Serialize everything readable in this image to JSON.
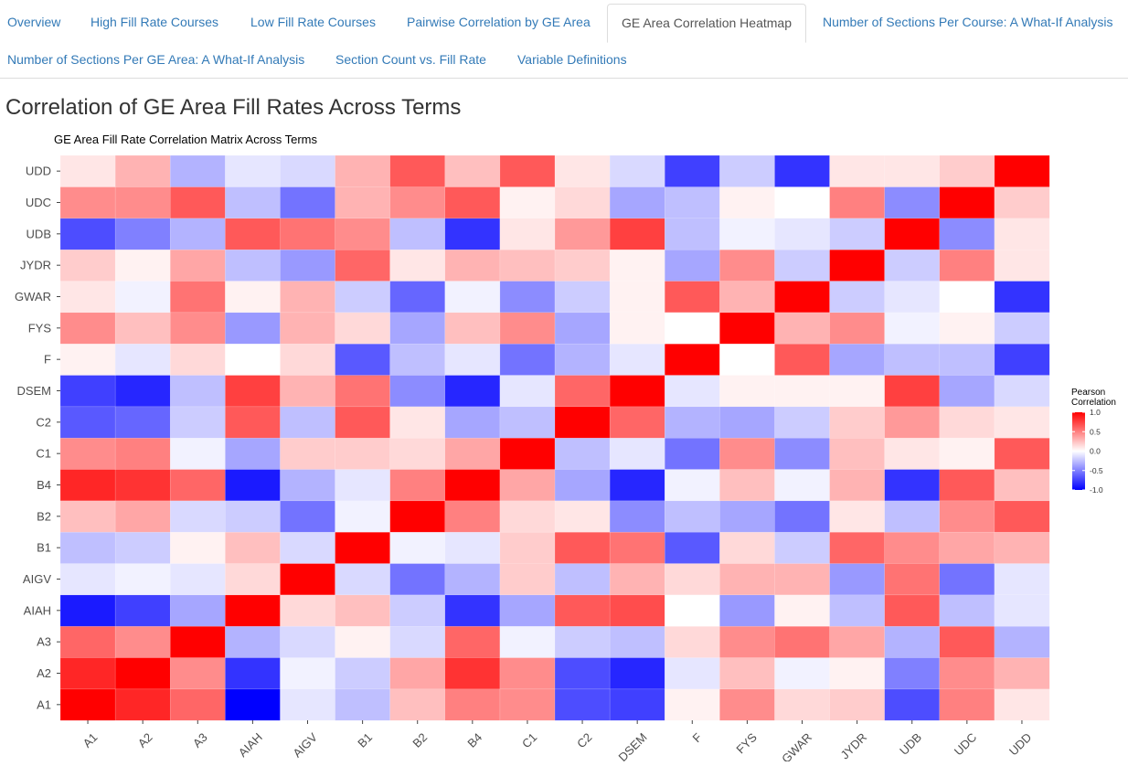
{
  "nav": {
    "tabs": [
      {
        "label": "Overview",
        "active": false
      },
      {
        "label": "High Fill Rate Courses",
        "active": false
      },
      {
        "label": "Low Fill Rate Courses",
        "active": false
      },
      {
        "label": "Pairwise Correlation by GE Area",
        "active": false
      },
      {
        "label": "GE Area Correlation Heatmap",
        "active": true
      },
      {
        "label": "Number of Sections Per Course: A What-If Analysis",
        "active": false
      },
      {
        "label": "Number of Sections Per GE Area: A What-If Analysis",
        "active": false
      },
      {
        "label": "Section Count vs. Fill Rate",
        "active": false
      },
      {
        "label": "Variable Definitions",
        "active": false
      }
    ]
  },
  "page": {
    "heading": "Correlation of GE Area Fill Rates Across Terms"
  },
  "colors": {
    "link": "#337ab7",
    "positive": "#ff0000",
    "neutral": "#ffffff",
    "negative": "#0000ff",
    "plot_background": "#ebebeb"
  },
  "chart_data": {
    "type": "heatmap",
    "title": "GE Area Fill Rate Correlation Matrix Across Terms",
    "x_categories": [
      "A1",
      "A2",
      "A3",
      "AIAH",
      "AIGV",
      "B1",
      "B2",
      "B4",
      "C1",
      "C2",
      "DSEM",
      "F",
      "FYS",
      "GWAR",
      "JYDR",
      "UDB",
      "UDC",
      "UDD"
    ],
    "y_categories": [
      "A1",
      "A2",
      "A3",
      "AIAH",
      "AIGV",
      "B1",
      "B2",
      "B4",
      "C1",
      "C2",
      "DSEM",
      "F",
      "FYS",
      "GWAR",
      "JYDR",
      "UDB",
      "UDC",
      "UDD"
    ],
    "values_note": "rows ordered bottom (A1) to top (UDD); each row lists x_categories left to right",
    "values": [
      [
        1.0,
        0.85,
        0.6,
        -1.0,
        -0.1,
        -0.25,
        0.25,
        0.5,
        0.45,
        -0.7,
        -0.75,
        0.05,
        0.45,
        0.15,
        0.2,
        -0.7,
        0.5,
        0.1
      ],
      [
        0.85,
        1.0,
        0.45,
        -0.8,
        -0.05,
        -0.2,
        0.35,
        0.8,
        0.45,
        -0.7,
        -0.85,
        -0.1,
        0.25,
        -0.05,
        0.05,
        -0.5,
        0.45,
        0.3
      ],
      [
        0.6,
        0.45,
        1.0,
        -0.3,
        -0.15,
        0.05,
        -0.15,
        0.6,
        -0.05,
        -0.2,
        -0.25,
        0.15,
        0.45,
        0.55,
        0.35,
        -0.3,
        0.65,
        -0.3
      ],
      [
        -0.9,
        -0.75,
        -0.35,
        1.0,
        0.15,
        0.25,
        -0.2,
        -0.8,
        -0.35,
        0.65,
        0.7,
        0.0,
        -0.4,
        0.05,
        -0.25,
        0.65,
        -0.25,
        -0.1
      ],
      [
        -0.1,
        -0.05,
        -0.1,
        0.15,
        1.0,
        -0.15,
        -0.55,
        -0.3,
        0.2,
        -0.25,
        0.3,
        0.15,
        0.3,
        0.3,
        -0.4,
        0.55,
        -0.55,
        -0.1
      ],
      [
        -0.25,
        -0.2,
        0.05,
        0.25,
        -0.15,
        1.0,
        -0.05,
        -0.1,
        0.2,
        0.65,
        0.55,
        -0.65,
        0.15,
        -0.2,
        0.6,
        0.45,
        0.35,
        0.3
      ],
      [
        0.25,
        0.35,
        -0.15,
        -0.2,
        -0.55,
        -0.05,
        1.0,
        0.5,
        0.15,
        0.1,
        -0.45,
        -0.25,
        -0.35,
        -0.55,
        0.1,
        -0.25,
        0.45,
        0.65
      ],
      [
        0.85,
        0.8,
        0.6,
        -0.9,
        -0.3,
        -0.1,
        0.5,
        1.0,
        0.35,
        -0.35,
        -0.85,
        -0.05,
        0.25,
        -0.05,
        0.3,
        -0.8,
        0.65,
        0.25
      ],
      [
        0.45,
        0.5,
        -0.05,
        -0.35,
        0.2,
        0.2,
        0.15,
        0.35,
        1.0,
        -0.25,
        -0.1,
        -0.55,
        0.45,
        -0.45,
        0.25,
        0.1,
        0.05,
        0.65
      ],
      [
        -0.65,
        -0.6,
        -0.2,
        0.65,
        -0.25,
        0.65,
        0.1,
        -0.35,
        -0.25,
        1.0,
        0.6,
        -0.3,
        -0.35,
        -0.2,
        0.2,
        0.4,
        0.15,
        0.1
      ],
      [
        -0.75,
        -0.85,
        -0.25,
        0.75,
        0.3,
        0.55,
        -0.45,
        -0.85,
        -0.1,
        0.6,
        1.0,
        -0.1,
        0.05,
        0.05,
        0.05,
        0.75,
        -0.35,
        -0.15
      ],
      [
        0.05,
        -0.1,
        0.15,
        0.0,
        0.15,
        -0.65,
        -0.25,
        -0.1,
        -0.55,
        -0.3,
        -0.1,
        1.0,
        0.0,
        0.65,
        -0.35,
        -0.25,
        -0.25,
        -0.75
      ],
      [
        0.45,
        0.25,
        0.45,
        -0.4,
        0.3,
        0.15,
        -0.35,
        0.25,
        0.45,
        -0.35,
        0.05,
        0.0,
        1.0,
        0.3,
        0.45,
        -0.05,
        0.05,
        -0.2
      ],
      [
        0.1,
        -0.05,
        0.55,
        0.05,
        0.3,
        -0.2,
        -0.6,
        -0.05,
        -0.45,
        -0.2,
        0.05,
        0.65,
        0.3,
        1.0,
        -0.2,
        -0.1,
        0.0,
        -0.8
      ],
      [
        0.2,
        0.05,
        0.35,
        -0.25,
        -0.4,
        0.6,
        0.1,
        0.3,
        0.25,
        0.2,
        0.05,
        -0.35,
        0.45,
        -0.2,
        1.0,
        -0.2,
        0.5,
        0.1
      ],
      [
        -0.7,
        -0.5,
        -0.3,
        0.65,
        0.55,
        0.45,
        -0.25,
        -0.8,
        0.1,
        0.4,
        0.75,
        -0.25,
        -0.05,
        -0.1,
        -0.2,
        1.0,
        -0.45,
        0.1
      ],
      [
        0.45,
        0.45,
        0.65,
        -0.25,
        -0.55,
        0.3,
        0.45,
        0.65,
        0.05,
        0.15,
        -0.35,
        -0.25,
        0.05,
        0.0,
        0.5,
        -0.45,
        1.0,
        0.2
      ],
      [
        0.1,
        0.3,
        -0.3,
        -0.1,
        -0.15,
        0.3,
        0.65,
        0.25,
        0.65,
        0.1,
        -0.15,
        -0.75,
        -0.2,
        -0.8,
        0.1,
        0.1,
        0.2,
        1.0
      ]
    ],
    "value_range": [
      -1.0,
      1.0
    ],
    "legend": {
      "title": "Pearson\nCorrelation",
      "ticks": [
        "1.0",
        "0.5",
        "0.0",
        "-0.5",
        "-1.0"
      ],
      "tick_values": [
        1.0,
        0.5,
        0.0,
        -0.5,
        -1.0
      ],
      "position": "right"
    },
    "grid": true,
    "x_tick_rotation": "45"
  }
}
